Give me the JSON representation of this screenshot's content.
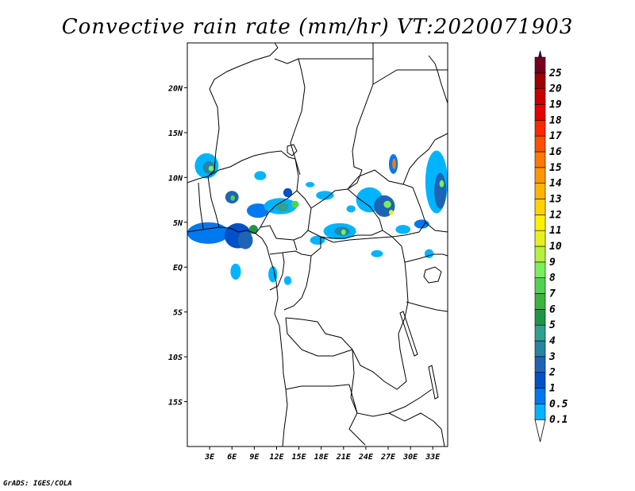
{
  "title": "Convective rain rate (mm/hr) VT:2020071903",
  "credit": "GrADS: IGES/COLA",
  "map": {
    "lon_range": [
      0,
      35
    ],
    "lat_range": [
      -20,
      25
    ],
    "lon_ticks": [
      {
        "lon": 3,
        "label": "3E"
      },
      {
        "lon": 6,
        "label": "6E"
      },
      {
        "lon": 9,
        "label": "9E"
      },
      {
        "lon": 12,
        "label": "12E"
      },
      {
        "lon": 15,
        "label": "15E"
      },
      {
        "lon": 18,
        "label": "18E"
      },
      {
        "lon": 21,
        "label": "21E"
      },
      {
        "lon": 24,
        "label": "24E"
      },
      {
        "lon": 27,
        "label": "27E"
      },
      {
        "lon": 30,
        "label": "30E"
      },
      {
        "lon": 33,
        "label": "33E"
      }
    ],
    "lat_ticks": [
      {
        "lat": 20,
        "label": "20N"
      },
      {
        "lat": 15,
        "label": "15N"
      },
      {
        "lat": 10,
        "label": "10N"
      },
      {
        "lat": 5,
        "label": "5N"
      },
      {
        "lat": 0,
        "label": "EQ"
      },
      {
        "lat": -5,
        "label": "5S"
      },
      {
        "lat": -10,
        "label": "10S"
      },
      {
        "lat": -15,
        "label": "15S"
      }
    ]
  },
  "colorbar": {
    "levels": [
      {
        "label": "0.1",
        "color": "#00b4ff"
      },
      {
        "label": "0.5",
        "color": "#0078f0"
      },
      {
        "label": "1",
        "color": "#0050c8"
      },
      {
        "label": "2",
        "color": "#1e64b4"
      },
      {
        "label": "3",
        "color": "#2884a0"
      },
      {
        "label": "4",
        "color": "#30a090"
      },
      {
        "label": "5",
        "color": "#1e9646"
      },
      {
        "label": "6",
        "color": "#3cb43c"
      },
      {
        "label": "7",
        "color": "#50d250"
      },
      {
        "label": "8",
        "color": "#78f05a"
      },
      {
        "label": "9",
        "color": "#b4f03c"
      },
      {
        "label": "10",
        "color": "#e6f01e"
      },
      {
        "label": "11",
        "color": "#fff000"
      },
      {
        "label": "12",
        "color": "#ffd200"
      },
      {
        "label": "13",
        "color": "#ffb400"
      },
      {
        "label": "14",
        "color": "#ff9600"
      },
      {
        "label": "15",
        "color": "#ff7800"
      },
      {
        "label": "16",
        "color": "#ff5000"
      },
      {
        "label": "17",
        "color": "#ff2800"
      },
      {
        "label": "18",
        "color": "#e60000"
      },
      {
        "label": "19",
        "color": "#c80000"
      },
      {
        "label": "20",
        "color": "#a00000"
      },
      {
        "label": "25",
        "color": "#78001e"
      }
    ],
    "top_color": "#5a0050"
  },
  "rain_patches": [
    {
      "lon": 2.8,
      "lat": 3.8,
      "rx": 2.8,
      "ry": 1.2,
      "level": 1
    },
    {
      "lon": 6.8,
      "lat": 3.5,
      "rx": 1.8,
      "ry": 1.4,
      "level": 2
    },
    {
      "lon": 7.8,
      "lat": 3.0,
      "rx": 1.0,
      "ry": 1.0,
      "level": 3
    },
    {
      "lon": 8.9,
      "lat": 4.2,
      "rx": 0.6,
      "ry": 0.5,
      "level": 6
    },
    {
      "lon": 2.6,
      "lat": 11.3,
      "rx": 1.6,
      "ry": 1.4,
      "level": 0
    },
    {
      "lon": 2.9,
      "lat": 11.1,
      "rx": 0.8,
      "ry": 0.7,
      "level": 4
    },
    {
      "lon": 3.2,
      "lat": 11.0,
      "rx": 0.35,
      "ry": 0.3,
      "level": 9
    },
    {
      "lon": 6.0,
      "lat": 7.8,
      "rx": 0.9,
      "ry": 0.7,
      "level": 3
    },
    {
      "lon": 6.1,
      "lat": 7.7,
      "rx": 0.3,
      "ry": 0.3,
      "level": 8
    },
    {
      "lon": 9.5,
      "lat": 6.3,
      "rx": 1.5,
      "ry": 0.8,
      "level": 1
    },
    {
      "lon": 12.5,
      "lat": 6.8,
      "rx": 2.2,
      "ry": 0.9,
      "level": 0
    },
    {
      "lon": 12.8,
      "lat": 6.7,
      "rx": 0.8,
      "ry": 0.5,
      "level": 5
    },
    {
      "lon": 14.5,
      "lat": 7.0,
      "rx": 0.5,
      "ry": 0.4,
      "level": 8
    },
    {
      "lon": 9.8,
      "lat": 10.2,
      "rx": 0.8,
      "ry": 0.5,
      "level": 0
    },
    {
      "lon": 13.5,
      "lat": 8.3,
      "rx": 0.6,
      "ry": 0.5,
      "level": 2
    },
    {
      "lon": 18.5,
      "lat": 8.0,
      "rx": 1.2,
      "ry": 0.5,
      "level": 0
    },
    {
      "lon": 20.5,
      "lat": 4.0,
      "rx": 2.2,
      "ry": 0.9,
      "level": 0
    },
    {
      "lon": 20.8,
      "lat": 4.0,
      "rx": 1.0,
      "ry": 0.5,
      "level": 4
    },
    {
      "lon": 21.0,
      "lat": 3.9,
      "rx": 0.3,
      "ry": 0.3,
      "level": 9
    },
    {
      "lon": 17.5,
      "lat": 3.0,
      "rx": 1.0,
      "ry": 0.5,
      "level": 0
    },
    {
      "lon": 24.5,
      "lat": 7.5,
      "rx": 1.8,
      "ry": 1.4,
      "level": 0
    },
    {
      "lon": 26.5,
      "lat": 6.8,
      "rx": 1.4,
      "ry": 1.2,
      "level": 3
    },
    {
      "lon": 26.9,
      "lat": 7.0,
      "rx": 0.5,
      "ry": 0.4,
      "level": 9
    },
    {
      "lon": 27.4,
      "lat": 6.1,
      "rx": 0.3,
      "ry": 0.3,
      "level": 11
    },
    {
      "lon": 27.7,
      "lat": 11.5,
      "rx": 0.6,
      "ry": 1.1,
      "level": 1
    },
    {
      "lon": 27.8,
      "lat": 11.5,
      "rx": 0.25,
      "ry": 0.6,
      "level": 16
    },
    {
      "lon": 33.5,
      "lat": 9.5,
      "rx": 1.5,
      "ry": 3.5,
      "level": 0
    },
    {
      "lon": 34.0,
      "lat": 8.5,
      "rx": 0.8,
      "ry": 2.0,
      "level": 3
    },
    {
      "lon": 34.2,
      "lat": 9.3,
      "rx": 0.3,
      "ry": 0.4,
      "level": 9
    },
    {
      "lon": 29.0,
      "lat": 4.2,
      "rx": 1.0,
      "ry": 0.5,
      "level": 0
    },
    {
      "lon": 31.5,
      "lat": 4.8,
      "rx": 1.0,
      "ry": 0.5,
      "level": 1
    },
    {
      "lon": 6.5,
      "lat": -0.5,
      "rx": 0.7,
      "ry": 0.9,
      "level": 0
    },
    {
      "lon": 11.5,
      "lat": -0.8,
      "rx": 0.6,
      "ry": 0.9,
      "level": 0
    },
    {
      "lon": 13.5,
      "lat": -1.5,
      "rx": 0.5,
      "ry": 0.5,
      "level": 0
    },
    {
      "lon": 25.5,
      "lat": 1.5,
      "rx": 0.8,
      "ry": 0.4,
      "level": 0
    },
    {
      "lon": 32.5,
      "lat": 1.5,
      "rx": 0.6,
      "ry": 0.5,
      "level": 0
    },
    {
      "lon": 22.0,
      "lat": 6.5,
      "rx": 0.6,
      "ry": 0.4,
      "level": 0
    },
    {
      "lon": 16.5,
      "lat": 9.2,
      "rx": 0.6,
      "ry": 0.3,
      "level": 0
    }
  ]
}
